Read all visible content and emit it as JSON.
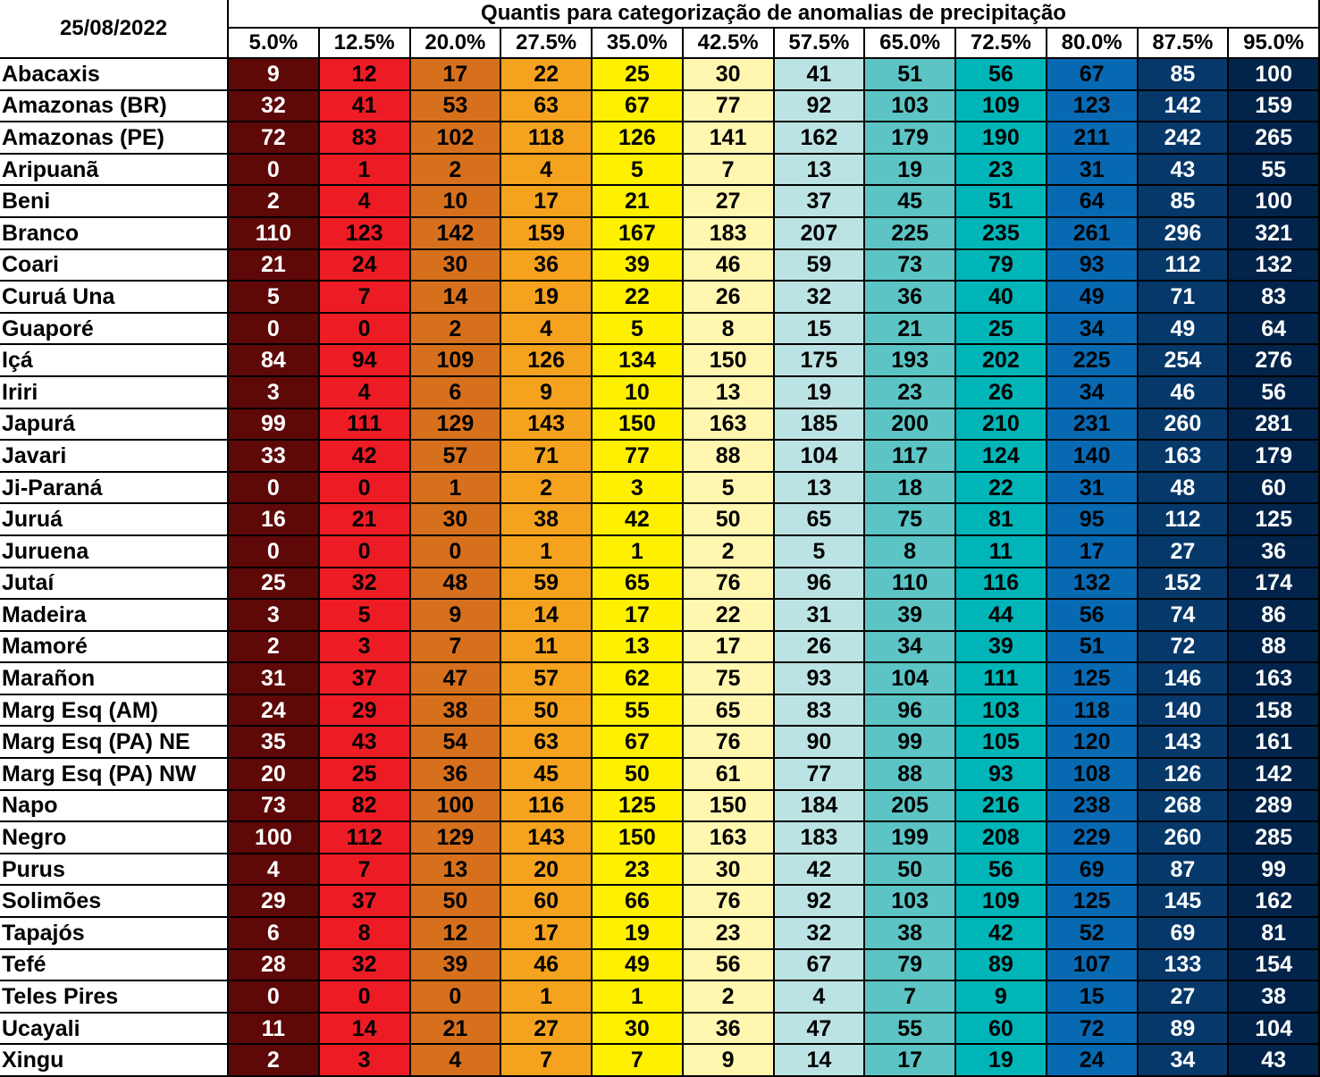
{
  "date": "25/08/2022",
  "title": "Quantis para categorização de anomalias de precipitação",
  "chart_data": {
    "type": "table",
    "title": "Quantis para categorização de anomalias de precipitação",
    "columns": [
      "5.0%",
      "12.5%",
      "20.0%",
      "27.5%",
      "35.0%",
      "42.5%",
      "57.5%",
      "65.0%",
      "72.5%",
      "80.0%",
      "87.5%",
      "95.0%"
    ],
    "column_colors": [
      "#5e0808",
      "#ed1c24",
      "#d7701c",
      "#f5a31e",
      "#fff000",
      "#fff6b0",
      "#bce3e3",
      "#5cc4c4",
      "#00b5b8",
      "#0869b3",
      "#06386a",
      "#03244a"
    ],
    "column_text_colors": [
      "#ffffff",
      "#000000",
      "#000000",
      "#000000",
      "#000000",
      "#000000",
      "#000000",
      "#000000",
      "#000000",
      "#000000",
      "#ffffff",
      "#ffffff"
    ],
    "rows": [
      {
        "name": "Abacaxis",
        "values": [
          9,
          12,
          17,
          22,
          25,
          30,
          41,
          51,
          56,
          67,
          85,
          100
        ]
      },
      {
        "name": "Amazonas (BR)",
        "values": [
          32,
          41,
          53,
          63,
          67,
          77,
          92,
          103,
          109,
          123,
          142,
          159
        ]
      },
      {
        "name": "Amazonas (PE)",
        "values": [
          72,
          83,
          102,
          118,
          126,
          141,
          162,
          179,
          190,
          211,
          242,
          265
        ]
      },
      {
        "name": "Aripuanã",
        "values": [
          0,
          1,
          2,
          4,
          5,
          7,
          13,
          19,
          23,
          31,
          43,
          55
        ]
      },
      {
        "name": "Beni",
        "values": [
          2,
          4,
          10,
          17,
          21,
          27,
          37,
          45,
          51,
          64,
          85,
          100
        ]
      },
      {
        "name": "Branco",
        "values": [
          110,
          123,
          142,
          159,
          167,
          183,
          207,
          225,
          235,
          261,
          296,
          321
        ]
      },
      {
        "name": "Coari",
        "values": [
          21,
          24,
          30,
          36,
          39,
          46,
          59,
          73,
          79,
          93,
          112,
          132
        ]
      },
      {
        "name": "Curuá Una",
        "values": [
          5,
          7,
          14,
          19,
          22,
          26,
          32,
          36,
          40,
          49,
          71,
          83
        ]
      },
      {
        "name": "Guaporé",
        "values": [
          0,
          0,
          2,
          4,
          5,
          8,
          15,
          21,
          25,
          34,
          49,
          64
        ]
      },
      {
        "name": "Içá",
        "values": [
          84,
          94,
          109,
          126,
          134,
          150,
          175,
          193,
          202,
          225,
          254,
          276
        ]
      },
      {
        "name": "Iriri",
        "values": [
          3,
          4,
          6,
          9,
          10,
          13,
          19,
          23,
          26,
          34,
          46,
          56
        ]
      },
      {
        "name": "Japurá",
        "values": [
          99,
          111,
          129,
          143,
          150,
          163,
          185,
          200,
          210,
          231,
          260,
          281
        ]
      },
      {
        "name": "Javari",
        "values": [
          33,
          42,
          57,
          71,
          77,
          88,
          104,
          117,
          124,
          140,
          163,
          179
        ]
      },
      {
        "name": "Ji-Paraná",
        "values": [
          0,
          0,
          1,
          2,
          3,
          5,
          13,
          18,
          22,
          31,
          48,
          60
        ]
      },
      {
        "name": "Juruá",
        "values": [
          16,
          21,
          30,
          38,
          42,
          50,
          65,
          75,
          81,
          95,
          112,
          125
        ]
      },
      {
        "name": "Juruena",
        "values": [
          0,
          0,
          0,
          1,
          1,
          2,
          5,
          8,
          11,
          17,
          27,
          36
        ]
      },
      {
        "name": "Jutaí",
        "values": [
          25,
          32,
          48,
          59,
          65,
          76,
          96,
          110,
          116,
          132,
          152,
          174
        ]
      },
      {
        "name": "Madeira",
        "values": [
          3,
          5,
          9,
          14,
          17,
          22,
          31,
          39,
          44,
          56,
          74,
          86
        ]
      },
      {
        "name": "Mamoré",
        "values": [
          2,
          3,
          7,
          11,
          13,
          17,
          26,
          34,
          39,
          51,
          72,
          88
        ]
      },
      {
        "name": "Marañon",
        "values": [
          31,
          37,
          47,
          57,
          62,
          75,
          93,
          104,
          111,
          125,
          146,
          163
        ]
      },
      {
        "name": "Marg Esq (AM)",
        "values": [
          24,
          29,
          38,
          50,
          55,
          65,
          83,
          96,
          103,
          118,
          140,
          158
        ]
      },
      {
        "name": "Marg Esq (PA) NE",
        "values": [
          35,
          43,
          54,
          63,
          67,
          76,
          90,
          99,
          105,
          120,
          143,
          161
        ]
      },
      {
        "name": "Marg Esq (PA) NW",
        "values": [
          20,
          25,
          36,
          45,
          50,
          61,
          77,
          88,
          93,
          108,
          126,
          142
        ]
      },
      {
        "name": "Napo",
        "values": [
          73,
          82,
          100,
          116,
          125,
          150,
          184,
          205,
          216,
          238,
          268,
          289
        ]
      },
      {
        "name": "Negro",
        "values": [
          100,
          112,
          129,
          143,
          150,
          163,
          183,
          199,
          208,
          229,
          260,
          285
        ]
      },
      {
        "name": "Purus",
        "values": [
          4,
          7,
          13,
          20,
          23,
          30,
          42,
          50,
          56,
          69,
          87,
          99
        ]
      },
      {
        "name": "Solimões",
        "values": [
          29,
          37,
          50,
          60,
          66,
          76,
          92,
          103,
          109,
          125,
          145,
          162
        ]
      },
      {
        "name": "Tapajós",
        "values": [
          6,
          8,
          12,
          17,
          19,
          23,
          32,
          38,
          42,
          52,
          69,
          81
        ]
      },
      {
        "name": "Tefé",
        "values": [
          28,
          32,
          39,
          46,
          49,
          56,
          67,
          79,
          89,
          107,
          133,
          154
        ]
      },
      {
        "name": "Teles Pires",
        "values": [
          0,
          0,
          0,
          1,
          1,
          2,
          4,
          7,
          9,
          15,
          27,
          38
        ]
      },
      {
        "name": "Ucayali",
        "values": [
          11,
          14,
          21,
          27,
          30,
          36,
          47,
          55,
          60,
          72,
          89,
          104
        ]
      },
      {
        "name": "Xingu",
        "values": [
          2,
          3,
          4,
          7,
          7,
          9,
          14,
          17,
          19,
          24,
          34,
          43
        ]
      }
    ]
  }
}
